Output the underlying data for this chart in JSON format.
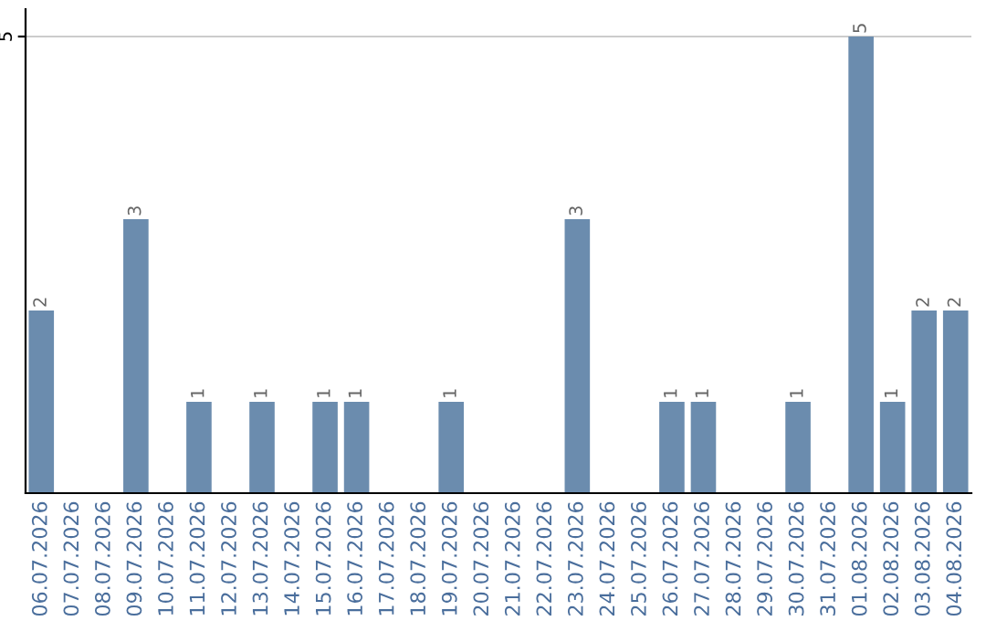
{
  "chart_data": {
    "type": "bar",
    "categories": [
      "06.07.2026",
      "07.07.2026",
      "08.07.2026",
      "09.07.2026",
      "10.07.2026",
      "11.07.2026",
      "12.07.2026",
      "13.07.2026",
      "14.07.2026",
      "15.07.2026",
      "16.07.2026",
      "17.07.2026",
      "18.07.2026",
      "19.07.2026",
      "20.07.2026",
      "21.07.2026",
      "22.07.2026",
      "23.07.2026",
      "24.07.2026",
      "25.07.2026",
      "26.07.2026",
      "27.07.2026",
      "28.07.2026",
      "29.07.2026",
      "30.07.2026",
      "31.07.2026",
      "01.08.2026",
      "02.08.2026",
      "03.08.2026",
      "04.08.2026"
    ],
    "values": [
      2,
      0,
      0,
      3,
      0,
      1,
      0,
      1,
      0,
      1,
      1,
      0,
      0,
      1,
      0,
      0,
      0,
      3,
      0,
      0,
      1,
      1,
      0,
      0,
      1,
      0,
      5,
      1,
      2,
      2
    ],
    "value_labels": [
      "2",
      null,
      null,
      "3",
      null,
      "1",
      null,
      "1",
      null,
      "1",
      "1",
      null,
      null,
      "1",
      null,
      null,
      null,
      "3",
      null,
      null,
      "1",
      "1",
      null,
      null,
      "1",
      null,
      "5",
      "1",
      "2",
      "2"
    ],
    "color": "#6b8cae",
    "ylim": [
      0,
      5.3
    ],
    "yticks": [
      5
    ],
    "grid": "y"
  }
}
